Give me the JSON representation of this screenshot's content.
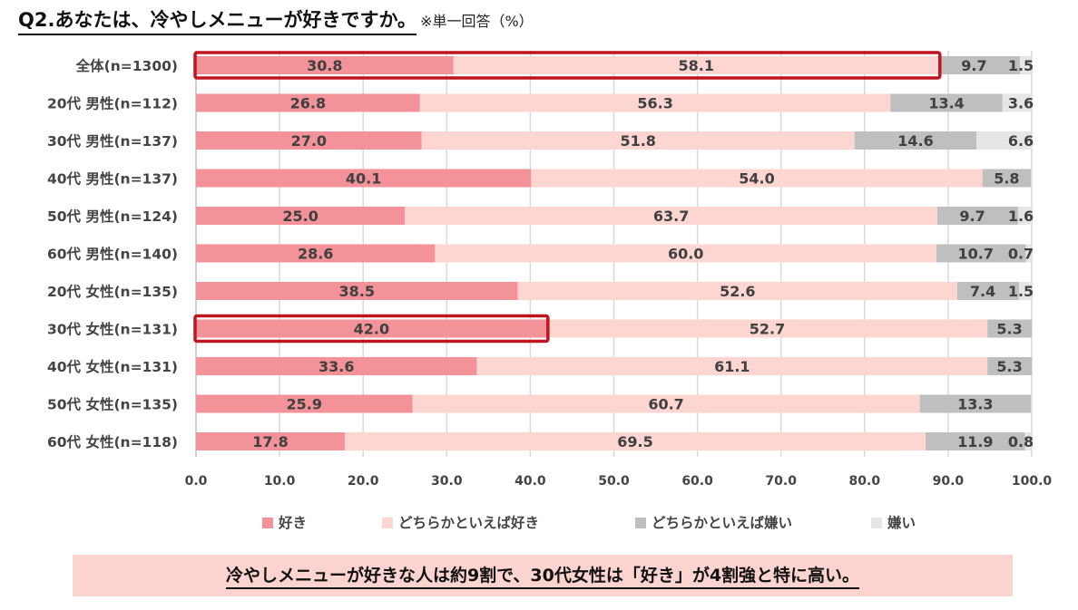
{
  "title": "Q2.あなたは、冷やしメニューが好きですか。",
  "title_note": "※単一回答（%）",
  "summary": "冷やしメニューが好きな人は約9割で、30代女性は「好き」が4割強と特に高い。",
  "colors": {
    "like": "#f4929a",
    "somewhat_like": "#fdd5d1",
    "somewhat_dislike": "#bfbfbf",
    "dislike": "#e6e6e6",
    "highlight": "#c0141e",
    "grid": "#d9d9d9"
  },
  "chart_data": {
    "type": "bar",
    "orientation": "horizontal",
    "stacked": true,
    "categories": [
      "全体(n=1300)",
      "20代 男性(n=112)",
      "30代 男性(n=137)",
      "40代 男性(n=137)",
      "50代 男性(n=124)",
      "60代 男性(n=140)",
      "20代 女性(n=135)",
      "30代 女性(n=131)",
      "40代 女性(n=131)",
      "50代 女性(n=135)",
      "60代 女性(n=118)"
    ],
    "series": [
      {
        "name": "好き",
        "values": [
          30.8,
          26.8,
          27.0,
          40.1,
          25.0,
          28.6,
          38.5,
          42.0,
          33.6,
          25.9,
          17.8
        ]
      },
      {
        "name": "どちらかといえば好き",
        "values": [
          58.1,
          56.3,
          51.8,
          54.0,
          63.7,
          60.0,
          52.6,
          52.7,
          61.1,
          60.7,
          69.5
        ]
      },
      {
        "name": "どちらかといえば嫌い",
        "values": [
          9.7,
          13.4,
          14.6,
          5.8,
          9.7,
          10.7,
          7.4,
          5.3,
          5.3,
          13.3,
          11.9
        ]
      },
      {
        "name": "嫌い",
        "values": [
          1.5,
          3.6,
          6.6,
          null,
          1.6,
          0.7,
          1.5,
          null,
          null,
          null,
          0.8
        ]
      }
    ],
    "xlim": [
      0,
      100
    ],
    "xticks": [
      "0.0",
      "10.0",
      "20.0",
      "30.0",
      "40.0",
      "50.0",
      "60.0",
      "70.0",
      "80.0",
      "90.0",
      "100.0"
    ],
    "grid": true,
    "legend_position": "bottom",
    "highlights": [
      {
        "category": "全体(n=1300)",
        "series": [
          "好き",
          "どちらかといえば好き"
        ]
      },
      {
        "category": "30代 女性(n=131)",
        "series": [
          "好き"
        ]
      }
    ]
  }
}
